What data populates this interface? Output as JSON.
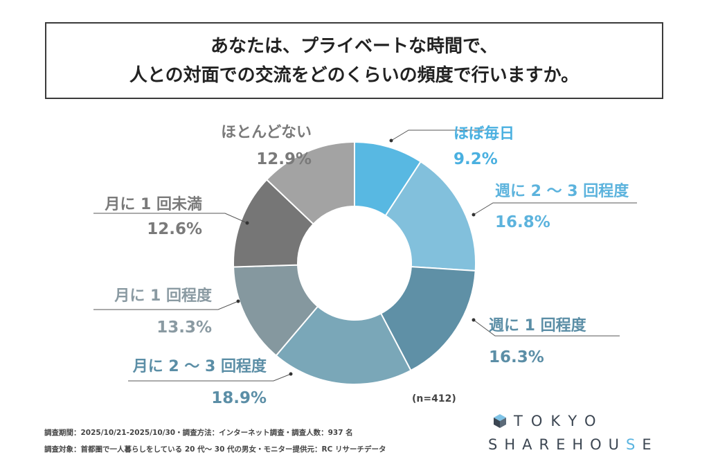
{
  "title": {
    "line1": "あなたは、プライベートな時間で、",
    "line2": "人との対面での交流をどのくらいの頻度で行いますか。"
  },
  "chart_data": {
    "type": "pie",
    "variant": "donut",
    "categories": [
      "ほぼ毎日",
      "週に 2 〜 3 回程度",
      "週に 1 回程度",
      "月に 2 〜 3 回程度",
      "月に 1 回程度",
      "月に 1 回未満",
      "ほとんどない"
    ],
    "values": [
      9.2,
      16.8,
      16.3,
      18.9,
      13.3,
      12.6,
      12.9
    ],
    "value_labels": [
      "9.2%",
      "16.8%",
      "16.3%",
      "18.9%",
      "13.3%",
      "12.6%",
      "12.9%"
    ],
    "colors": [
      "#58b8e2",
      "#82c0dc",
      "#5f90a6",
      "#7aa7b8",
      "#85989f",
      "#767676",
      "#a3a3a3"
    ],
    "label_colors": [
      "#4ab0e0",
      "#5cb3dd",
      "#5b8ea6",
      "#5b8ea6",
      "#8a9aa2",
      "#7a7a7a",
      "#7a7a7a"
    ],
    "sample_note": "(n=412)"
  },
  "footer": {
    "line1": "調査期間：2025/10/21-2025/10/30・調査方法：インターネット調査・調査人数：937 名",
    "line2": "調査対象：首都圏で一人暮らしをしている 20 代〜 30 代の男女・モニター提供元：RC リサーチデータ"
  },
  "logo": {
    "line1": "TOKYO",
    "line2_main": "SHAREHOU",
    "line2_accent": "S",
    "line2_end": "E",
    "brand_color": "#3c4652",
    "accent_color": "#5ab4e0"
  }
}
